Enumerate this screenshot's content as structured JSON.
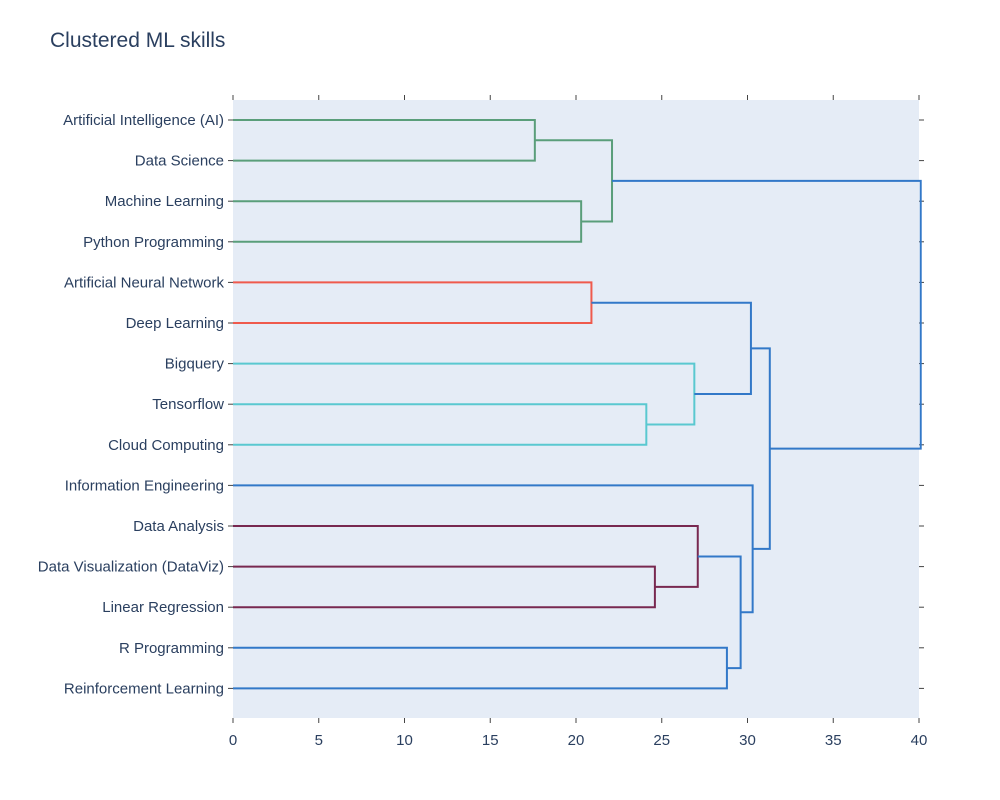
{
  "chart_data": {
    "type": "dendrogram",
    "title": "Clustered ML skills",
    "orientation": "horizontal",
    "xlabel": "",
    "ylabel": "",
    "xlim": [
      0,
      40
    ],
    "xticks": [
      0,
      5,
      10,
      15,
      20,
      25,
      30,
      35,
      40
    ],
    "leaves": [
      "Artificial Intelligence (AI)",
      "Data Science",
      "Machine Learning",
      "Python Programming",
      "Artificial Neural Network",
      "Deep Learning",
      "Bigquery",
      "Tensorflow",
      "Cloud Computing",
      "Information Engineering",
      "Data Analysis",
      "Data Visualization (DataViz)",
      "Linear Regression",
      "R Programming",
      "Reinforcement Learning"
    ],
    "links": [
      {
        "a": 0,
        "b": 1,
        "h": 17.6,
        "cluster": "green"
      },
      {
        "a": 2,
        "b": 3,
        "h": 20.3,
        "cluster": "green"
      },
      {
        "a": 0.5,
        "b": 2.5,
        "h": 22.1,
        "cluster": "green"
      },
      {
        "a": 4,
        "b": 5,
        "h": 20.9,
        "cluster": "red"
      },
      {
        "a": 7,
        "b": 8,
        "h": 24.1,
        "cluster": "cyan"
      },
      {
        "a": 6,
        "b": 7.5,
        "h": 26.9,
        "cluster": "cyan"
      },
      {
        "a": 4.5,
        "b": 6.75,
        "h": 30.2,
        "cluster": "blue"
      },
      {
        "a": 11,
        "b": 12,
        "h": 24.6,
        "cluster": "purple"
      },
      {
        "a": 10,
        "b": 11.5,
        "h": 27.1,
        "cluster": "purple"
      },
      {
        "a": 13,
        "b": 14,
        "h": 28.8,
        "cluster": "blue"
      },
      {
        "a": 10.75,
        "b": 13.5,
        "h": 29.6,
        "cluster": "blue"
      },
      {
        "a": 9,
        "b": 12.125,
        "h": 30.3,
        "cluster": "blue"
      },
      {
        "a": 5.625,
        "b": 10.5625,
        "h": 31.3,
        "cluster": "blue"
      },
      {
        "a": 1.5,
        "b": 8.09375,
        "h": 40.1,
        "cluster": "blue"
      }
    ],
    "singleton_leaves": [
      {
        "leaf": 9,
        "cluster": "blue"
      },
      {
        "leaf": 13,
        "cluster": "blue"
      },
      {
        "leaf": 14,
        "cluster": "blue"
      }
    ],
    "colors": {
      "green": "#5a9e7a",
      "red": "#ef5a4c",
      "cyan": "#5ac8d0",
      "purple": "#782850",
      "blue": "#3278c8",
      "plot_bg": "#e5ecf6",
      "text": "#2a3f5f"
    }
  }
}
